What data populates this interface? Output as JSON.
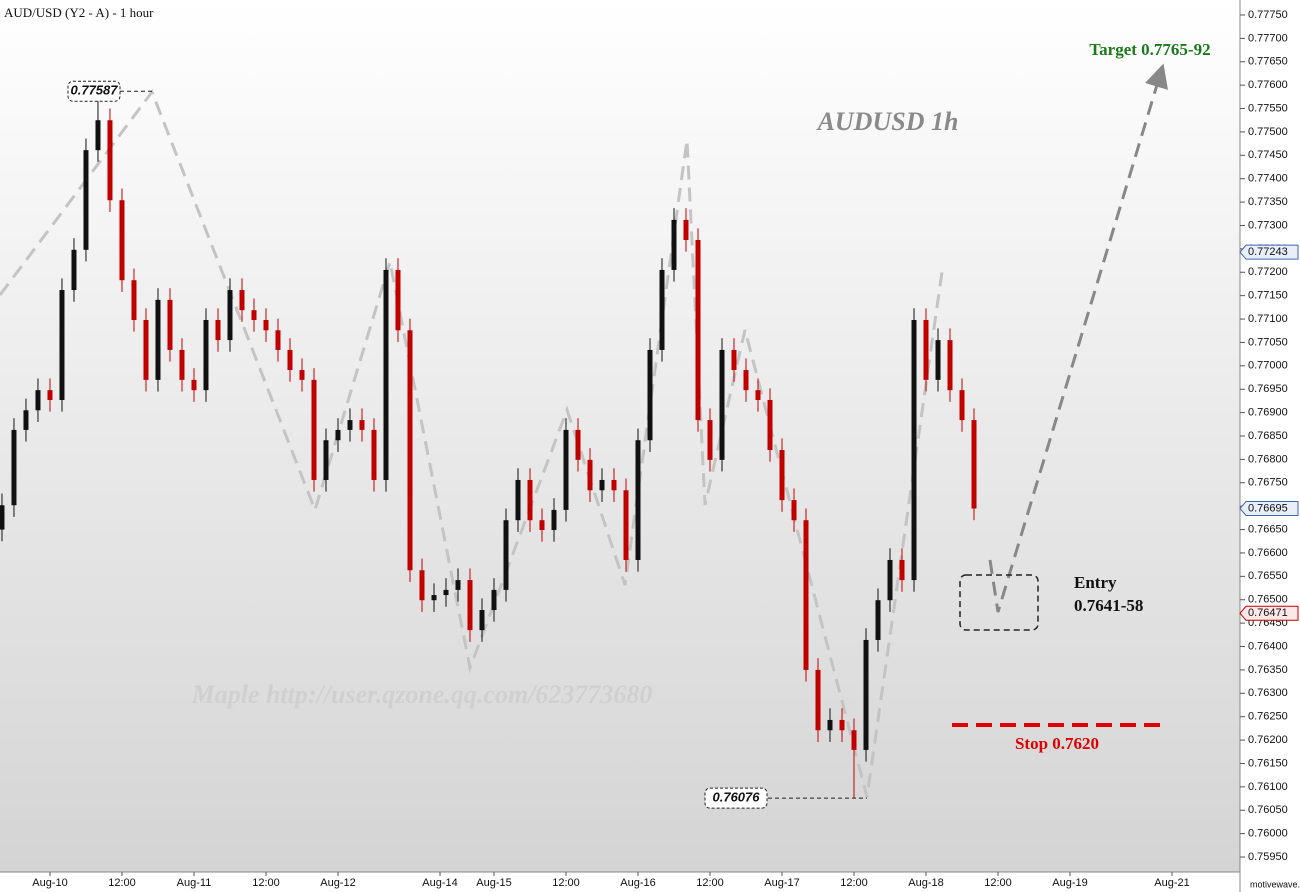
{
  "chart_data": {
    "type": "candlestick",
    "title": "AUD/USD (Y2 - A) - 1 hour",
    "chart_label": "AUDUSD 1h",
    "watermark": "Maple  http://user.qzone.qq.com/623773680",
    "target_text": "Target 0.7765-92",
    "entry_text": "Entry",
    "entry_range": "0.7641-58",
    "stop_text": "Stop 0.7620",
    "footer": "motivewave.com",
    "high_label": 0.77587,
    "low_label": 0.76076,
    "price_markers": [
      0.77243,
      0.76695,
      0.76471
    ],
    "up_color": "#111111",
    "down_color": "#c00000",
    "x": [
      0,
      2,
      4,
      6,
      8,
      10,
      12,
      14,
      16,
      18,
      20,
      22,
      24,
      26,
      28,
      30,
      32,
      34,
      36,
      38,
      40,
      42,
      44,
      46,
      48,
      50,
      52,
      54,
      56,
      58,
      60,
      62,
      64,
      66,
      68,
      70,
      72,
      74,
      76,
      78,
      80,
      82,
      84,
      86,
      88,
      90,
      92,
      94,
      96,
      98,
      100,
      102,
      104,
      106,
      108,
      110,
      112,
      114,
      116,
      118,
      120,
      122,
      124,
      126,
      128,
      130,
      132,
      134,
      136,
      138,
      140,
      142,
      144,
      146,
      148,
      150,
      152,
      154,
      156,
      158,
      160,
      162
    ],
    "open": [
      0.7665,
      0.76702,
      0.76863,
      0.76905,
      0.76948,
      0.76927,
      0.77162,
      0.77248,
      0.77461,
      0.77525,
      0.77354,
      0.77183,
      0.77098,
      0.7697,
      0.77141,
      0.77034,
      0.7697,
      0.76948,
      0.77098,
      0.77055,
      0.77162,
      0.77119,
      0.77098,
      0.77076,
      0.77034,
      0.76991,
      0.7697,
      0.76756,
      0.76841,
      0.76863,
      0.76884,
      0.76863,
      0.76756,
      0.77205,
      0.77076,
      0.76563,
      0.76499,
      0.7651,
      0.76521,
      0.76542,
      0.76435,
      0.76478,
      0.76521,
      0.7667,
      0.76756,
      0.7667,
      0.76649,
      0.76692,
      0.76863,
      0.76799,
      0.76734,
      0.76756,
      0.76734,
      0.76585,
      0.76841,
      0.77034,
      0.77205,
      0.77312,
      0.77269,
      0.76884,
      0.76799,
      0.77034,
      0.76991,
      0.76948,
      0.76927,
      0.7682,
      0.76713,
      0.7667,
      0.7635,
      0.76221,
      0.76243,
      0.76221,
      0.76179,
      0.76414,
      0.76499,
      0.76585,
      0.76542,
      0.77098,
      0.7697,
      0.77055,
      0.76948,
      0.76884
    ],
    "high": [
      0.76727,
      0.76888,
      0.7693,
      0.76973,
      0.76973,
      0.77187,
      0.77273,
      0.77486,
      0.77587,
      0.7755,
      0.77379,
      0.77208,
      0.77123,
      0.77166,
      0.77166,
      0.77059,
      0.76995,
      0.77123,
      0.77123,
      0.77187,
      0.77187,
      0.77144,
      0.77123,
      0.77101,
      0.77059,
      0.77016,
      0.76995,
      0.76866,
      0.76888,
      0.76909,
      0.76909,
      0.76888,
      0.7723,
      0.7723,
      0.77101,
      0.76588,
      0.76535,
      0.76546,
      0.76567,
      0.76567,
      0.76503,
      0.76546,
      0.76695,
      0.76781,
      0.76781,
      0.76695,
      0.76717,
      0.76888,
      0.76888,
      0.76824,
      0.76781,
      0.76781,
      0.76759,
      0.76866,
      0.77059,
      0.7723,
      0.77337,
      0.77337,
      0.77294,
      0.76909,
      0.77059,
      0.77059,
      0.77016,
      0.76973,
      0.76952,
      0.76845,
      0.76738,
      0.76695,
      0.76375,
      0.76268,
      0.76268,
      0.76246,
      0.76439,
      0.76524,
      0.7661,
      0.7661,
      0.77123,
      0.77123,
      0.7708,
      0.7708,
      0.76973,
      0.76909
    ],
    "low": [
      0.76625,
      0.76677,
      0.76838,
      0.7688,
      0.76902,
      0.76902,
      0.77137,
      0.77223,
      0.77436,
      0.77329,
      0.77158,
      0.77073,
      0.76945,
      0.76945,
      0.77009,
      0.76945,
      0.76923,
      0.76923,
      0.7703,
      0.7703,
      0.77094,
      0.77073,
      0.77051,
      0.77009,
      0.76966,
      0.76945,
      0.76731,
      0.76731,
      0.76816,
      0.76838,
      0.76838,
      0.76731,
      0.76731,
      0.77051,
      0.76538,
      0.76474,
      0.76474,
      0.76485,
      0.76496,
      0.7641,
      0.7641,
      0.76453,
      0.76496,
      0.76645,
      0.76645,
      0.76624,
      0.76624,
      0.76667,
      0.76774,
      0.76709,
      0.76709,
      0.76709,
      0.7656,
      0.7656,
      0.76816,
      0.77009,
      0.7718,
      0.77244,
      0.76859,
      0.76774,
      0.76774,
      0.76966,
      0.76923,
      0.76902,
      0.76795,
      0.76688,
      0.76645,
      0.76325,
      0.76196,
      0.76196,
      0.76196,
      0.76076,
      0.76154,
      0.76389,
      0.76474,
      0.76517,
      0.76517,
      0.76945,
      0.76945,
      0.76923,
      0.76859,
      0.7667
    ],
    "close": [
      0.76702,
      0.76863,
      0.76905,
      0.76948,
      0.76927,
      0.77162,
      0.77248,
      0.77461,
      0.77525,
      0.77354,
      0.77183,
      0.77098,
      0.7697,
      0.77141,
      0.77034,
      0.7697,
      0.76948,
      0.77098,
      0.77055,
      0.77162,
      0.77119,
      0.77098,
      0.77076,
      0.77034,
      0.76991,
      0.7697,
      0.76756,
      0.76841,
      0.76863,
      0.76884,
      0.76863,
      0.76756,
      0.77205,
      0.77076,
      0.76563,
      0.76499,
      0.7651,
      0.76521,
      0.76542,
      0.76435,
      0.76478,
      0.76521,
      0.7667,
      0.76756,
      0.7667,
      0.76649,
      0.76692,
      0.76863,
      0.76799,
      0.76734,
      0.76756,
      0.76734,
      0.76585,
      0.76841,
      0.77034,
      0.77205,
      0.77312,
      0.77269,
      0.76884,
      0.76799,
      0.77034,
      0.76991,
      0.76948,
      0.76927,
      0.7682,
      0.76713,
      0.7667,
      0.7635,
      0.76221,
      0.76243,
      0.76221,
      0.76179,
      0.76414,
      0.76499,
      0.76585,
      0.76542,
      0.77098,
      0.7697,
      0.77055,
      0.76948,
      0.76884,
      0.76695
    ],
    "xlim": [
      -0.33,
      206.33
    ],
    "xticks": [
      {
        "value": 8,
        "label": "Aug-10"
      },
      {
        "value": 20,
        "label": "12:00"
      },
      {
        "value": 32,
        "label": "Aug-11"
      },
      {
        "value": 44,
        "label": "12:00"
      },
      {
        "value": 56,
        "label": "Aug-12"
      },
      {
        "value": 73,
        "label": "Aug-14"
      },
      {
        "value": 82,
        "label": "Aug-15"
      },
      {
        "value": 94,
        "label": "12:00"
      },
      {
        "value": 106,
        "label": "Aug-16"
      },
      {
        "value": 118,
        "label": "12:00"
      },
      {
        "value": 130,
        "label": "Aug-17"
      },
      {
        "value": 142,
        "label": "12:00"
      },
      {
        "value": 154,
        "label": "Aug-18"
      },
      {
        "value": 166,
        "label": "12:00"
      },
      {
        "value": 178,
        "label": "Aug-19"
      },
      {
        "value": 195,
        "label": "Aug-21"
      }
    ],
    "ylim": [
      0.75918,
      0.77782
    ],
    "yticks": [
      {
        "value": 0.7595,
        "label": "0.75950"
      },
      {
        "value": 0.76,
        "label": "0.76000"
      },
      {
        "value": 0.7605,
        "label": "0.76050"
      },
      {
        "value": 0.761,
        "label": "0.76100"
      },
      {
        "value": 0.7615,
        "label": "0.76150"
      },
      {
        "value": 0.762,
        "label": "0.76200"
      },
      {
        "value": 0.7625,
        "label": "0.76250"
      },
      {
        "value": 0.763,
        "label": "0.76300"
      },
      {
        "value": 0.7635,
        "label": "0.76350"
      },
      {
        "value": 0.764,
        "label": "0.76400"
      },
      {
        "value": 0.7645,
        "label": "0.76450"
      },
      {
        "value": 0.765,
        "label": "0.76500"
      },
      {
        "value": 0.7655,
        "label": "0.76550"
      },
      {
        "value": 0.766,
        "label": "0.76600"
      },
      {
        "value": 0.7665,
        "label": "0.76650"
      },
      {
        "value": 0.767,
        "label": "0.76700"
      },
      {
        "value": 0.7675,
        "label": "0.76750"
      },
      {
        "value": 0.768,
        "label": "0.76800"
      },
      {
        "value": 0.7685,
        "label": "0.76850"
      },
      {
        "value": 0.769,
        "label": "0.76900"
      },
      {
        "value": 0.7695,
        "label": "0.76950"
      },
      {
        "value": 0.77,
        "label": "0.77000"
      },
      {
        "value": 0.7705,
        "label": "0.77050"
      },
      {
        "value": 0.771,
        "label": "0.77100"
      },
      {
        "value": 0.7715,
        "label": "0.77150"
      },
      {
        "value": 0.772,
        "label": "0.77200"
      },
      {
        "value": 0.7725,
        "label": "0.77250"
      },
      {
        "value": 0.773,
        "label": "0.77300"
      },
      {
        "value": 0.7735,
        "label": "0.77350"
      },
      {
        "value": 0.774,
        "label": "0.77400"
      },
      {
        "value": 0.7745,
        "label": "0.77450"
      },
      {
        "value": 0.775,
        "label": "0.77500"
      },
      {
        "value": 0.7755,
        "label": "0.77550"
      },
      {
        "value": 0.776,
        "label": "0.77600"
      },
      {
        "value": 0.7765,
        "label": "0.77650"
      },
      {
        "value": 0.777,
        "label": "0.77700"
      },
      {
        "value": 0.7775,
        "label": "0.77750"
      }
    ]
  }
}
